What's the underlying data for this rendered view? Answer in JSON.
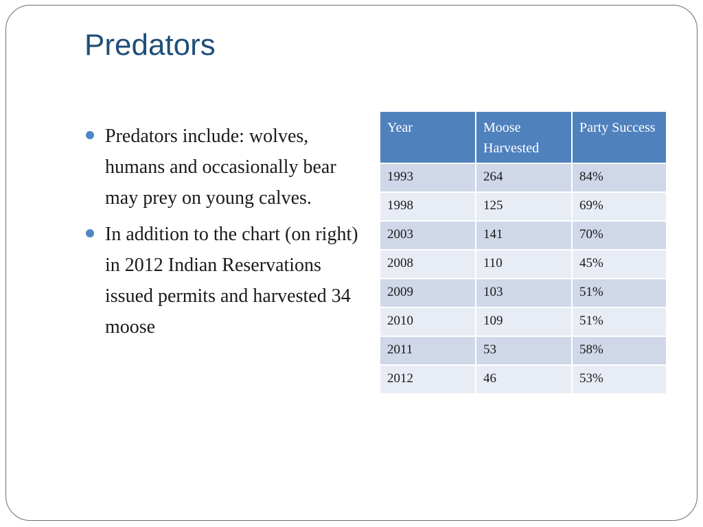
{
  "slide": {
    "title": "Predators",
    "bullets": [
      "Predators include: wolves, humans and occasionally bear may prey on young calves.",
      "In addition to the chart (on right) in 2012 Indian Reservations issued permits and harvested 34 moose"
    ],
    "bullet_color": "#4f86c6",
    "title_color": "#1f4e79"
  },
  "table": {
    "headers": [
      "Year",
      "Moose Harvested",
      "Party Success"
    ],
    "header_color": "#4f81bd",
    "rows": [
      [
        "1993",
        "264",
        "84%"
      ],
      [
        "1998",
        "125",
        "69%"
      ],
      [
        "2003",
        "141",
        "70%"
      ],
      [
        "2008",
        "110",
        "45%"
      ],
      [
        "2009",
        "103",
        "51%"
      ],
      [
        "2010",
        "109",
        "51%"
      ],
      [
        "2011",
        "53",
        "58%"
      ],
      [
        "2012",
        "46",
        "53%"
      ]
    ]
  }
}
